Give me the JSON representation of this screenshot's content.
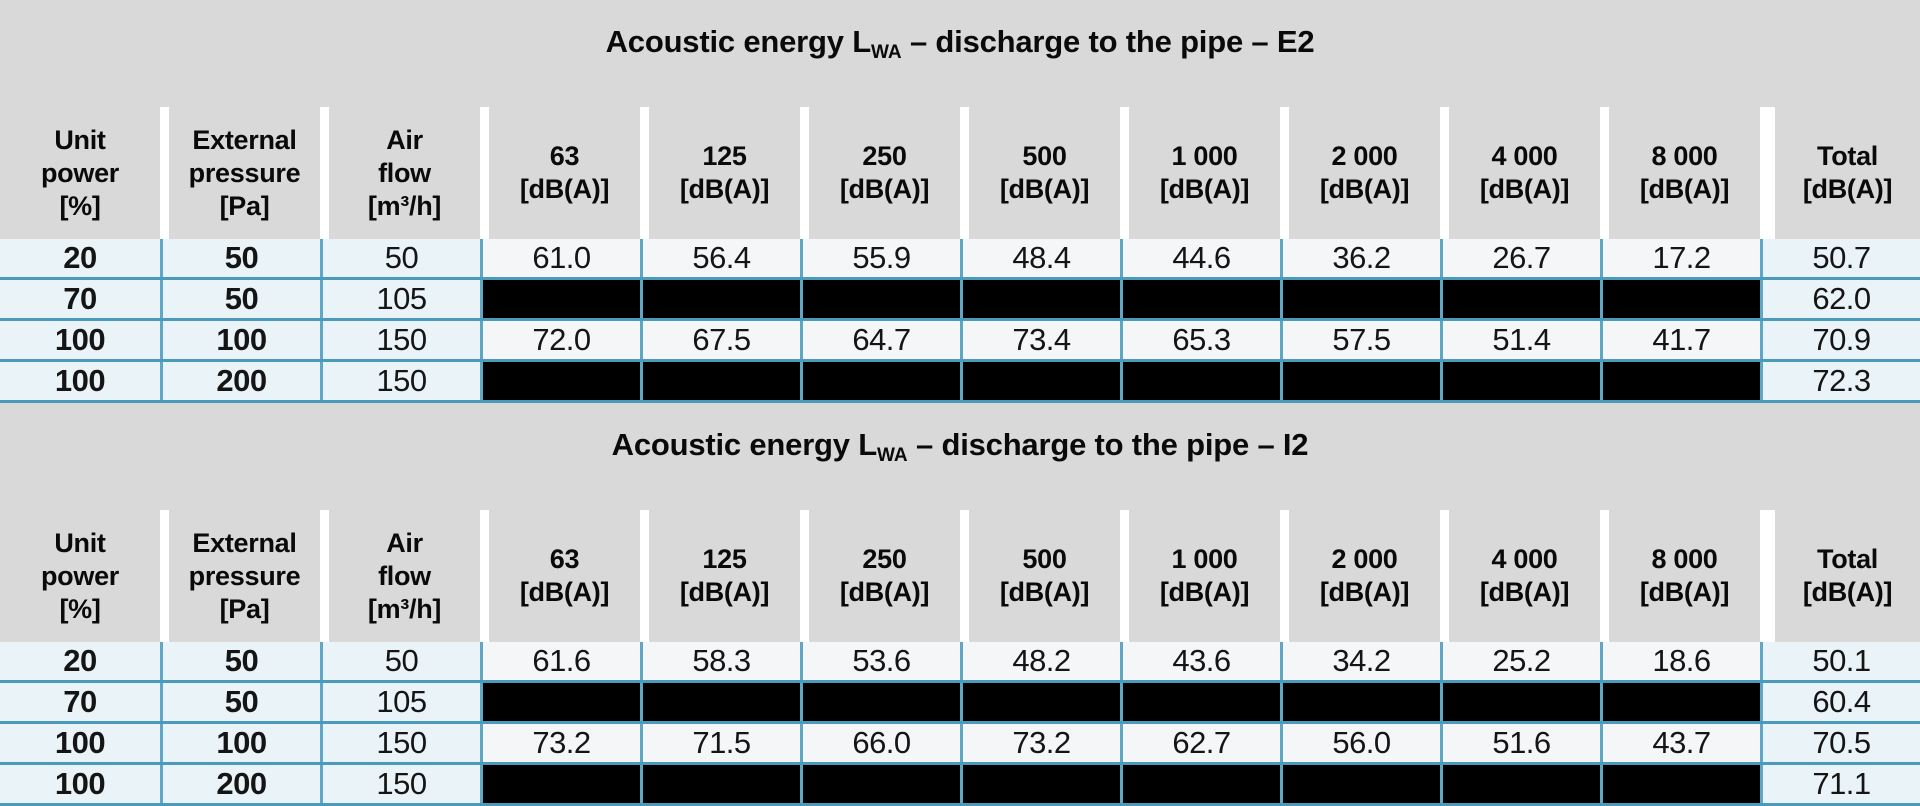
{
  "columns": [
    [
      "Unit",
      "power",
      "[%]"
    ],
    [
      "External",
      "pressure",
      "[Pa]"
    ],
    [
      "Air",
      "flow",
      "[m³/h]"
    ],
    [
      "63",
      "[dB(A)]"
    ],
    [
      "125",
      "[dB(A)]"
    ],
    [
      "250",
      "[dB(A)]"
    ],
    [
      "500",
      "[dB(A)]"
    ],
    [
      "1 000",
      "[dB(A)]"
    ],
    [
      "2 000",
      "[dB(A)]"
    ],
    [
      "4 000",
      "[dB(A)]"
    ],
    [
      "8 000",
      "[dB(A)]"
    ],
    [
      "Total",
      "[dB(A)]"
    ]
  ],
  "tables": [
    {
      "title": {
        "pre": "Acoustic energy L",
        "sub": "WA",
        "post": " – discharge to the pipe – E2"
      },
      "rows": [
        {
          "cells": [
            "20",
            "50",
            "50",
            "61.0",
            "56.4",
            "55.9",
            "48.4",
            "44.6",
            "36.2",
            "26.7",
            "17.2",
            "50.7"
          ],
          "redacted": false
        },
        {
          "cells": [
            "70",
            "50",
            "105",
            "",
            "",
            "",
            "",
            "",
            "",
            "",
            "",
            "62.0"
          ],
          "redacted": true
        },
        {
          "cells": [
            "100",
            "100",
            "150",
            "72.0",
            "67.5",
            "64.7",
            "73.4",
            "65.3",
            "57.5",
            "51.4",
            "41.7",
            "70.9"
          ],
          "redacted": false
        },
        {
          "cells": [
            "100",
            "200",
            "150",
            "",
            "",
            "",
            "",
            "",
            "",
            "",
            "",
            "72.3"
          ],
          "redacted": true
        }
      ]
    },
    {
      "title": {
        "pre": "Acoustic energy L",
        "sub": "WA",
        "post": " – discharge to the pipe – I2"
      },
      "rows": [
        {
          "cells": [
            "20",
            "50",
            "50",
            "61.6",
            "58.3",
            "53.6",
            "48.2",
            "43.6",
            "34.2",
            "25.2",
            "18.6",
            "50.1"
          ],
          "redacted": false
        },
        {
          "cells": [
            "70",
            "50",
            "105",
            "",
            "",
            "",
            "",
            "",
            "",
            "",
            "",
            "60.4"
          ],
          "redacted": true
        },
        {
          "cells": [
            "100",
            "100",
            "150",
            "73.2",
            "71.5",
            "66.0",
            "73.2",
            "62.7",
            "56.0",
            "51.6",
            "43.7",
            "70.5"
          ],
          "redacted": false
        },
        {
          "cells": [
            "100",
            "200",
            "150",
            "",
            "",
            "",
            "",
            "",
            "",
            "",
            "",
            "71.1"
          ],
          "redacted": true
        }
      ]
    }
  ],
  "colors": {
    "band_gray": "#d9d9d9",
    "cell_blue": "#e9f3f8",
    "cell_white": "#f4f6f7",
    "redacted_black": "#000000",
    "border_vertical": "#5fa8c5",
    "border_horizontal": "#4a9abc"
  }
}
